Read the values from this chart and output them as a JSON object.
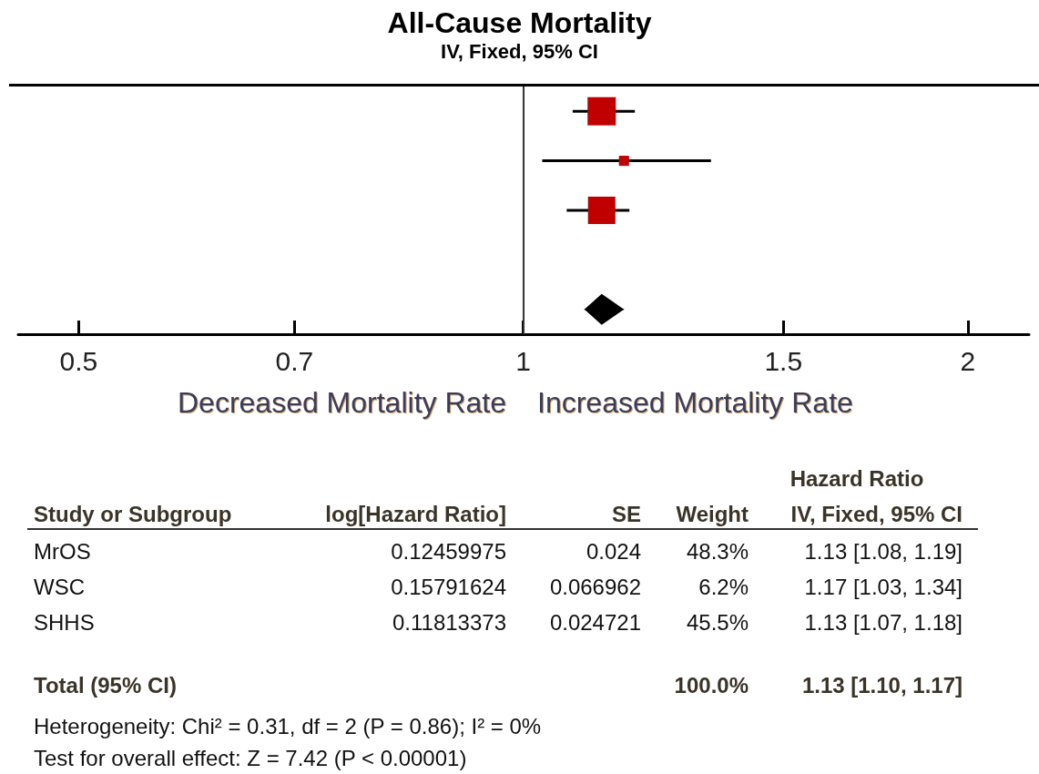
{
  "chart_data": {
    "type": "scatter",
    "title": "All-Cause Mortality",
    "subtitle": "IV, Fixed, 95% CI",
    "orientation": "horizontal",
    "log": "x",
    "categories": [
      null,
      null,
      null,
      null,
      null
    ],
    "series": [
      {
        "type": "bubble",
        "marker": "square",
        "color": "#c00000",
        "values": [
          1.13,
          1.17,
          1.13,
          null,
          null
        ],
        "sizes": [
          1,
          0.128,
          0.942,
          null,
          null
        ],
        "errors": [
          [
            1.08,
            1.19
          ],
          [
            1.03,
            1.34
          ],
          [
            1.07,
            1.18
          ],
          null,
          null
        ]
      },
      {
        "type": "scatter",
        "marker": "diamond",
        "color": "#000000",
        "values": [
          null,
          null,
          null,
          null,
          1.13
        ],
        "errors": [
          null,
          null,
          null,
          null,
          [
            1.1,
            1.17
          ]
        ]
      }
    ],
    "xlim": [
      0.455,
      2.2
    ],
    "xticks": [
      0.5,
      0.7,
      1,
      1.5,
      2
    ],
    "grid": false,
    "ref_lines": [
      {
        "axis": "x",
        "value": 1,
        "color": "#333333"
      }
    ],
    "annotations": [
      "Decreased Mortality Rate",
      "Increased Mortality Rate",
      "Hazard Ratio",
      "Study or Subgroup",
      "log[Hazard Ratio]",
      "SE",
      "Weight",
      "IV, Fixed, 95% CI",
      "MrOS",
      "0.12459975",
      "0.024",
      "48.3%",
      "1.13 [1.08, 1.19]",
      "WSC",
      "0.15791624",
      "0.066962",
      "6.2%",
      "1.17 [1.03, 1.34]",
      "SHHS",
      "0.11813373",
      "0.024721",
      "45.5%",
      "1.13 [1.07, 1.18]",
      "Total (95% CI)",
      "100.0%",
      "1.13 [1.10, 1.17]",
      "Heterogeneity: Chi² = 0.31, df = 2 (P = 0.86); I² = 0%",
      "Test for overall effect: Z = 7.42 (P < 0.00001)"
    ]
  }
}
